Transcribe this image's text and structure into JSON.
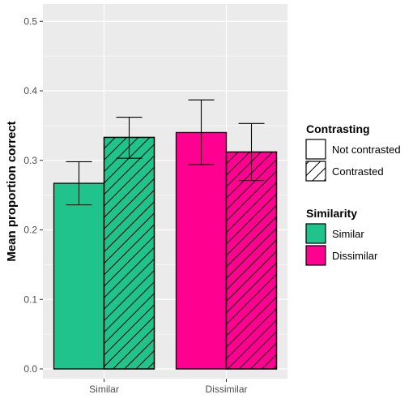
{
  "chart_data": {
    "type": "bar",
    "ylabel": "Mean proportion correct",
    "ylim": [
      0,
      0.5
    ],
    "yticks": [
      "0.0",
      "0.1",
      "0.2",
      "0.3",
      "0.4",
      "0.5"
    ],
    "categories": [
      "Similar",
      "Dissimilar"
    ],
    "series": [
      {
        "name": "Not contrasted",
        "values": [
          0.267,
          0.34
        ],
        "error_low": [
          0.236,
          0.294
        ],
        "error_high": [
          0.298,
          0.387
        ]
      },
      {
        "name": "Contrasted",
        "values": [
          0.333,
          0.312
        ],
        "error_low": [
          0.303,
          0.271
        ],
        "error_high": [
          0.362,
          0.353
        ]
      }
    ],
    "legend": [
      {
        "title": "Contrasting",
        "entries": [
          "Not contrasted",
          "Contrasted"
        ]
      },
      {
        "title": "Similarity",
        "entries": [
          "Similar",
          "Dissimilar"
        ]
      }
    ],
    "legend_position": "right",
    "grid": true,
    "colors": {
      "Similar": "#1fc38b",
      "Dissimilar": "#ff0090",
      "panel": "#ebebeb",
      "grid": "#ffffff"
    }
  }
}
